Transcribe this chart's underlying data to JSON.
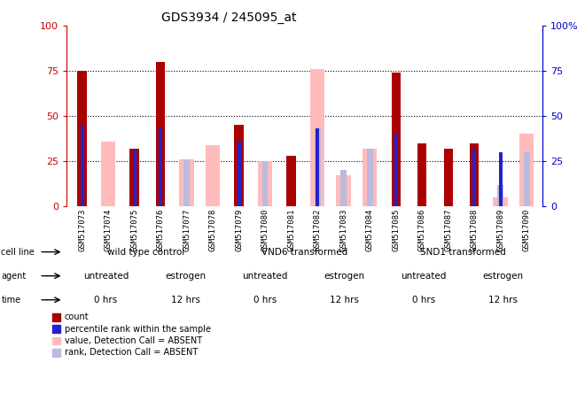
{
  "title": "GDS3934 / 245095_at",
  "samples": [
    "GSM517073",
    "GSM517074",
    "GSM517075",
    "GSM517076",
    "GSM517077",
    "GSM517078",
    "GSM517079",
    "GSM517080",
    "GSM517081",
    "GSM517082",
    "GSM517083",
    "GSM517084",
    "GSM517085",
    "GSM517086",
    "GSM517087",
    "GSM517088",
    "GSM517089",
    "GSM517090"
  ],
  "count": [
    75,
    0,
    32,
    80,
    0,
    0,
    45,
    0,
    28,
    0,
    0,
    0,
    74,
    35,
    32,
    35,
    0,
    0
  ],
  "percentile_rank": [
    45,
    0,
    32,
    43,
    0,
    0,
    36,
    0,
    0,
    43,
    0,
    0,
    40,
    0,
    0,
    32,
    30,
    0
  ],
  "value_absent": [
    0,
    36,
    0,
    0,
    26,
    34,
    0,
    25,
    0,
    76,
    17,
    32,
    0,
    0,
    0,
    0,
    5,
    40
  ],
  "rank_absent": [
    0,
    0,
    0,
    0,
    26,
    0,
    0,
    25,
    0,
    43,
    20,
    32,
    0,
    0,
    0,
    0,
    12,
    30
  ],
  "cell_line_groups": [
    {
      "label": "wild type control",
      "start": 0,
      "end": 6,
      "color": "#b8e0b8"
    },
    {
      "label": "VND6 transformed",
      "start": 6,
      "end": 12,
      "color": "#88cc88"
    },
    {
      "label": "SND1 transformed",
      "start": 12,
      "end": 18,
      "color": "#66bb66"
    }
  ],
  "agent_groups": [
    {
      "label": "untreated",
      "start": 0,
      "end": 3,
      "color": "#9999cc"
    },
    {
      "label": "estrogen",
      "start": 3,
      "end": 6,
      "color": "#8888bb"
    },
    {
      "label": "untreated",
      "start": 6,
      "end": 9,
      "color": "#9999cc"
    },
    {
      "label": "estrogen",
      "start": 9,
      "end": 12,
      "color": "#8888bb"
    },
    {
      "label": "untreated",
      "start": 12,
      "end": 15,
      "color": "#9999cc"
    },
    {
      "label": "estrogen",
      "start": 15,
      "end": 18,
      "color": "#8888bb"
    }
  ],
  "time_groups": [
    {
      "label": "0 hrs",
      "start": 0,
      "end": 3,
      "color": "#e8b0a0"
    },
    {
      "label": "12 hrs",
      "start": 3,
      "end": 6,
      "color": "#cc7766"
    },
    {
      "label": "0 hrs",
      "start": 6,
      "end": 9,
      "color": "#e8b0a0"
    },
    {
      "label": "12 hrs",
      "start": 9,
      "end": 12,
      "color": "#cc7766"
    },
    {
      "label": "0 hrs",
      "start": 12,
      "end": 15,
      "color": "#e8b0a0"
    },
    {
      "label": "12 hrs",
      "start": 15,
      "end": 18,
      "color": "#cc7766"
    }
  ],
  "count_color": "#aa0000",
  "rank_color": "#2222cc",
  "value_absent_color": "#ffbbbb",
  "rank_absent_color": "#bbbbdd",
  "ylim": [
    0,
    100
  ],
  "yticks": [
    0,
    25,
    50,
    75,
    100
  ],
  "left_tick_color": "#cc0000",
  "right_tick_color": "#0000cc",
  "legend_items": [
    {
      "label": "count",
      "color": "#aa0000"
    },
    {
      "label": "percentile rank within the sample",
      "color": "#2222cc"
    },
    {
      "label": "value, Detection Call = ABSENT",
      "color": "#ffbbbb"
    },
    {
      "label": "rank, Detection Call = ABSENT",
      "color": "#bbbbdd"
    }
  ],
  "row_labels": [
    "cell line",
    "agent",
    "time"
  ]
}
